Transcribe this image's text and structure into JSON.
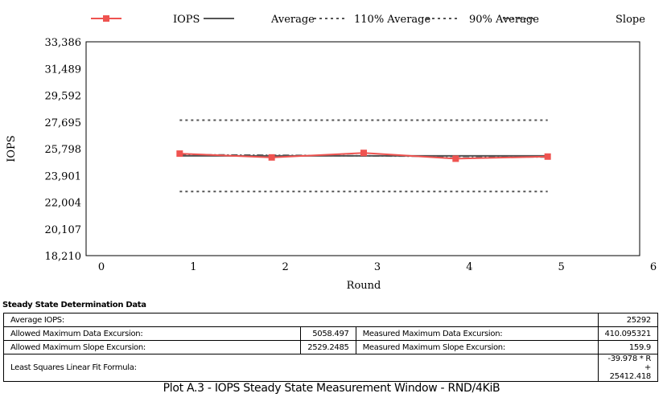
{
  "chart_data": {
    "type": "line",
    "xlabel": "Round",
    "ylabel": "IOPS",
    "xlim": [
      0,
      6
    ],
    "ylim": [
      18210,
      33386
    ],
    "x_ticks": [
      "0",
      "1",
      "2",
      "3",
      "4",
      "5",
      "6"
    ],
    "y_ticks": [
      "18,210",
      "20,107",
      "22,004",
      "23,901",
      "25,798",
      "27,695",
      "29,592",
      "31,489",
      "33,386"
    ],
    "legend_position": "top",
    "grid": false,
    "series": [
      {
        "name": "IOPS",
        "x": [
          1,
          2,
          3,
          4,
          5
        ],
        "y": [
          25450,
          25180,
          25500,
          25090,
          25240
        ],
        "color": "#ef5350",
        "style": "solid-markers"
      },
      {
        "name": "Average",
        "x": [
          1,
          5
        ],
        "y": [
          25292,
          25292
        ],
        "color": "#555555",
        "style": "solid"
      },
      {
        "name": "110% Average",
        "x": [
          1,
          5
        ],
        "y": [
          27821,
          27821
        ],
        "color": "#555555",
        "style": "dotted"
      },
      {
        "name": "90% Average",
        "x": [
          1,
          5
        ],
        "y": [
          22763,
          22763
        ],
        "color": "#555555",
        "style": "dotted"
      },
      {
        "name": "Slope",
        "x": [
          1,
          5
        ],
        "y": [
          25372,
          25212
        ],
        "color": "#555555",
        "style": "dashdot"
      }
    ]
  },
  "table": {
    "title": "Steady State Determination Data",
    "average_label": "Average IOPS:",
    "average_value": "25292",
    "allowed_data_label": "Allowed Maximum Data Excursion:",
    "allowed_data_value": "5058.497",
    "measured_data_label": "Measured Maximum Data Excursion:",
    "measured_data_value": "410.095321",
    "allowed_slope_label": "Allowed Maximum Slope Excursion:",
    "allowed_slope_value": "2529.2485",
    "measured_slope_label": "Measured Maximum Slope Excursion:",
    "measured_slope_value": "159.9",
    "formula_label": "Least Squares Linear Fit Formula:",
    "formula_value": "-39.978 * R + 25412.418"
  },
  "caption": "Plot A.3 - IOPS Steady State Measurement Window - RND/4KiB"
}
